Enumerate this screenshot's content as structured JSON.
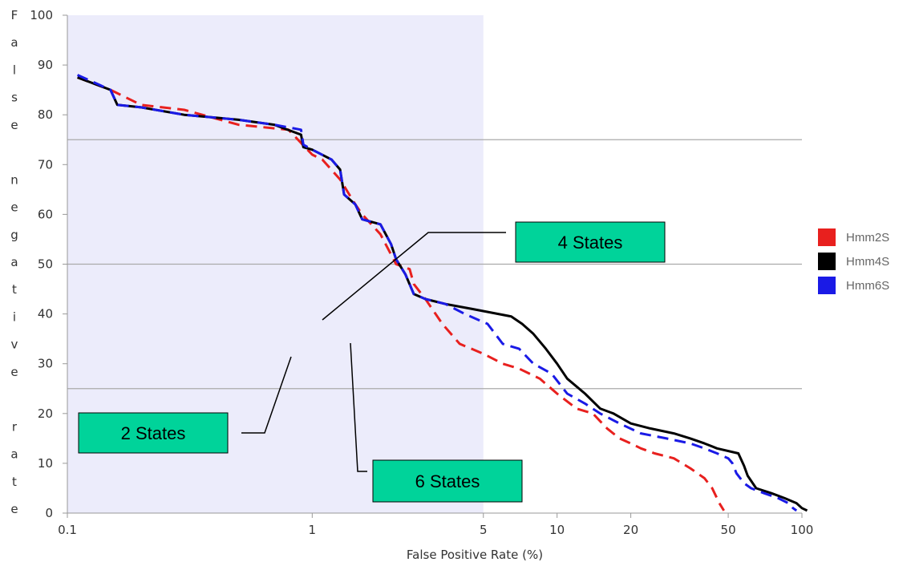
{
  "chart_data": {
    "type": "line",
    "x_scale": "log",
    "xlim": [
      0.1,
      100
    ],
    "ylim": [
      0,
      100
    ],
    "xlabel": "False Positive Rate (%)",
    "ylabel": "False negative rate",
    "x_ticks": [
      "0.1",
      "1",
      "5",
      "10",
      "20",
      "50",
      "100"
    ],
    "y_ticks": [
      "0",
      "10",
      "20",
      "30",
      "40",
      "50",
      "60",
      "70",
      "80",
      "90",
      "100"
    ],
    "reference_lines_y": [
      25,
      50,
      75
    ],
    "shaded_x_range": [
      0.1,
      5
    ],
    "series": [
      {
        "name": "Hmm2S",
        "color": "#e8201e",
        "style": "dashed",
        "points": [
          [
            0.11,
            87.5
          ],
          [
            0.15,
            85
          ],
          [
            0.2,
            82
          ],
          [
            0.3,
            81
          ],
          [
            0.5,
            78
          ],
          [
            0.8,
            77
          ],
          [
            1.0,
            72
          ],
          [
            1.1,
            71
          ],
          [
            1.3,
            67
          ],
          [
            1.5,
            62
          ],
          [
            1.6,
            60
          ],
          [
            1.9,
            56
          ],
          [
            2.2,
            50
          ],
          [
            2.5,
            49
          ],
          [
            2.6,
            46
          ],
          [
            2.9,
            43
          ],
          [
            3.4,
            38
          ],
          [
            4.0,
            34
          ],
          [
            5.0,
            32
          ],
          [
            6.0,
            30
          ],
          [
            7.0,
            29
          ],
          [
            8.5,
            27
          ],
          [
            10,
            24
          ],
          [
            12,
            21
          ],
          [
            14,
            20
          ],
          [
            16,
            17
          ],
          [
            18,
            15
          ],
          [
            20,
            14
          ],
          [
            22,
            13
          ],
          [
            25,
            12
          ],
          [
            30,
            11
          ],
          [
            35,
            9
          ],
          [
            40,
            7
          ],
          [
            43,
            5
          ],
          [
            46,
            2
          ],
          [
            48,
            0.5
          ]
        ]
      },
      {
        "name": "Hmm4S",
        "color": "#000000",
        "style": "solid",
        "points": [
          [
            0.11,
            87.5
          ],
          [
            0.15,
            85
          ],
          [
            0.16,
            82
          ],
          [
            0.2,
            81.5
          ],
          [
            0.3,
            80
          ],
          [
            0.5,
            79
          ],
          [
            0.7,
            78
          ],
          [
            0.9,
            76
          ],
          [
            0.92,
            73.5
          ],
          [
            1.0,
            73
          ],
          [
            1.2,
            71
          ],
          [
            1.3,
            69
          ],
          [
            1.35,
            64
          ],
          [
            1.5,
            62
          ],
          [
            1.6,
            59
          ],
          [
            1.9,
            58
          ],
          [
            2.1,
            54
          ],
          [
            2.2,
            51
          ],
          [
            2.4,
            48
          ],
          [
            2.6,
            44
          ],
          [
            2.9,
            43
          ],
          [
            3.5,
            42
          ],
          [
            4.5,
            41
          ],
          [
            6.5,
            39.5
          ],
          [
            7.2,
            38
          ],
          [
            8,
            36
          ],
          [
            9,
            33
          ],
          [
            10,
            30
          ],
          [
            11,
            27
          ],
          [
            13,
            24
          ],
          [
            15,
            21
          ],
          [
            17,
            20
          ],
          [
            20,
            18
          ],
          [
            24,
            17
          ],
          [
            30,
            16
          ],
          [
            35,
            15
          ],
          [
            40,
            14
          ],
          [
            45,
            13
          ],
          [
            55,
            12
          ],
          [
            58,
            9.5
          ],
          [
            60,
            7.5
          ],
          [
            65,
            5
          ],
          [
            75,
            4
          ],
          [
            85,
            3
          ],
          [
            95,
            2
          ],
          [
            100,
            1
          ],
          [
            105,
            0.5
          ]
        ]
      },
      {
        "name": "Hmm6S",
        "color": "#1a1ae6",
        "style": "dashed",
        "points": [
          [
            0.11,
            88
          ],
          [
            0.15,
            85
          ],
          [
            0.16,
            82
          ],
          [
            0.2,
            81.5
          ],
          [
            0.3,
            80
          ],
          [
            0.5,
            79
          ],
          [
            0.7,
            78
          ],
          [
            0.9,
            77
          ],
          [
            0.92,
            74
          ],
          [
            1.0,
            73
          ],
          [
            1.2,
            71
          ],
          [
            1.3,
            69
          ],
          [
            1.35,
            64
          ],
          [
            1.5,
            62
          ],
          [
            1.6,
            59
          ],
          [
            1.9,
            58
          ],
          [
            2.1,
            54
          ],
          [
            2.2,
            51
          ],
          [
            2.4,
            48
          ],
          [
            2.6,
            44
          ],
          [
            2.9,
            43
          ],
          [
            3.5,
            42
          ],
          [
            4.2,
            40
          ],
          [
            5.2,
            38
          ],
          [
            6.0,
            34
          ],
          [
            7.0,
            33
          ],
          [
            8.0,
            30
          ],
          [
            9.5,
            28
          ],
          [
            11,
            24
          ],
          [
            13,
            22
          ],
          [
            15,
            20
          ],
          [
            18,
            18
          ],
          [
            22,
            16
          ],
          [
            28,
            15
          ],
          [
            35,
            14
          ],
          [
            40,
            13
          ],
          [
            45,
            12
          ],
          [
            50,
            11
          ],
          [
            52,
            10
          ],
          [
            54,
            8
          ],
          [
            58,
            6
          ],
          [
            62,
            5
          ],
          [
            70,
            4
          ],
          [
            80,
            3
          ],
          [
            88,
            2
          ],
          [
            92,
            1
          ],
          [
            95,
            0.5
          ]
        ]
      }
    ],
    "legend": {
      "placement": "right",
      "entries": [
        {
          "label": "Hmm2S",
          "color": "#e8201e"
        },
        {
          "label": "Hmm4S",
          "color": "#000000"
        },
        {
          "label": "Hmm6S",
          "color": "#1a1ae6"
        }
      ]
    },
    "annotations": [
      {
        "id": "4-states",
        "text": "4 States",
        "target_series": "Hmm4S",
        "target": [
          5.4,
          39
        ]
      },
      {
        "id": "2-states",
        "text": "2 States",
        "target_series": "Hmm2S",
        "target": [
          3.0,
          36
        ]
      },
      {
        "id": "6-states",
        "text": "6 States",
        "target_series": "Hmm6S",
        "target": [
          4.6,
          34
        ]
      }
    ],
    "grid": false
  }
}
